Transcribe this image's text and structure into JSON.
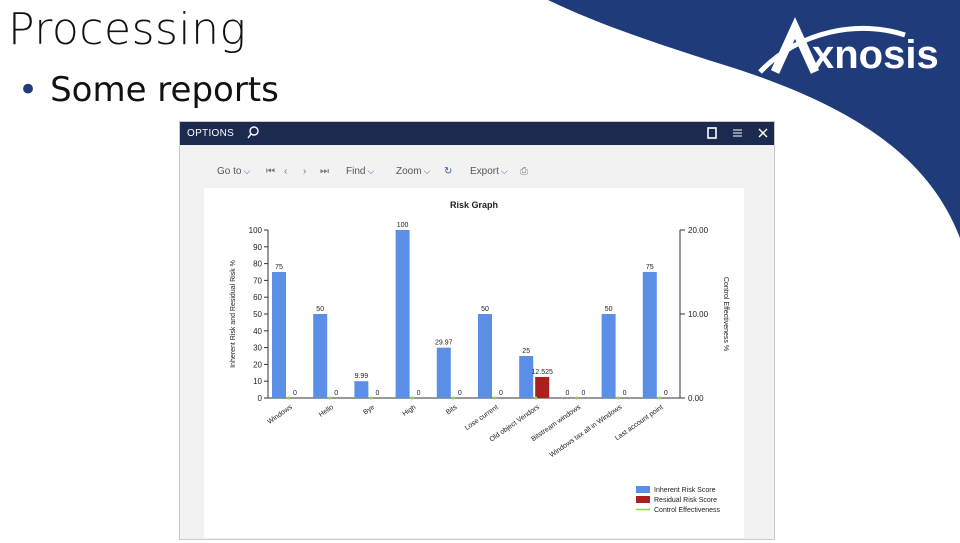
{
  "slide": {
    "title": "Processing",
    "bullet": "Some reports"
  },
  "logo": {
    "text": "Axnosis",
    "color": "#1f3b7a"
  },
  "window": {
    "title": "OPTIONS",
    "toolbar": {
      "goto": "Go to",
      "find": "Find",
      "zoom": "Zoom",
      "export": "Export"
    }
  },
  "chart_data": {
    "type": "bar",
    "title": "Risk Graph",
    "ylabel": "Inherent Risk and Residual Risk %",
    "y2label": "Control Effectiveness %",
    "ylim": [
      0,
      100
    ],
    "y2lim": [
      0,
      20
    ],
    "yticks": [
      "0",
      "10",
      "20",
      "30",
      "40",
      "50",
      "60",
      "70",
      "80",
      "90",
      "100"
    ],
    "y2ticks": [
      "0.00",
      "10.00",
      "20.00"
    ],
    "categories": [
      "Windows",
      "Hello",
      "Bye",
      "High",
      "Bits",
      "Lose current",
      "Old object Vendors",
      "Bitstream windows",
      "Windows tax all in Windows",
      "Last account point"
    ],
    "series": [
      {
        "name": "Inherent Risk Score",
        "color": "#5b8fe6",
        "values": [
          75,
          50,
          9.99,
          100,
          29.97,
          50,
          25,
          0,
          50,
          75
        ],
        "labels": [
          "75",
          "50",
          "9.99",
          "100",
          "29.97",
          "50",
          "25",
          "0",
          "50",
          "75"
        ]
      },
      {
        "name": "Residual Risk Score",
        "color": "#a82020",
        "values": [
          0,
          0,
          0,
          0,
          0,
          0,
          12.525,
          0,
          0,
          0
        ],
        "labels": [
          "0",
          "0",
          "0",
          "0",
          "0",
          "0",
          "12.525",
          "0",
          "0",
          "0"
        ]
      },
      {
        "name": "Control Effectiveness",
        "color": "#8fd14f",
        "values": [
          0,
          0,
          0,
          0,
          0,
          0,
          0,
          0,
          0,
          0
        ]
      }
    ],
    "legend": [
      "Inherent Risk Score",
      "Residual Risk Score",
      "Control Effectiveness"
    ]
  }
}
